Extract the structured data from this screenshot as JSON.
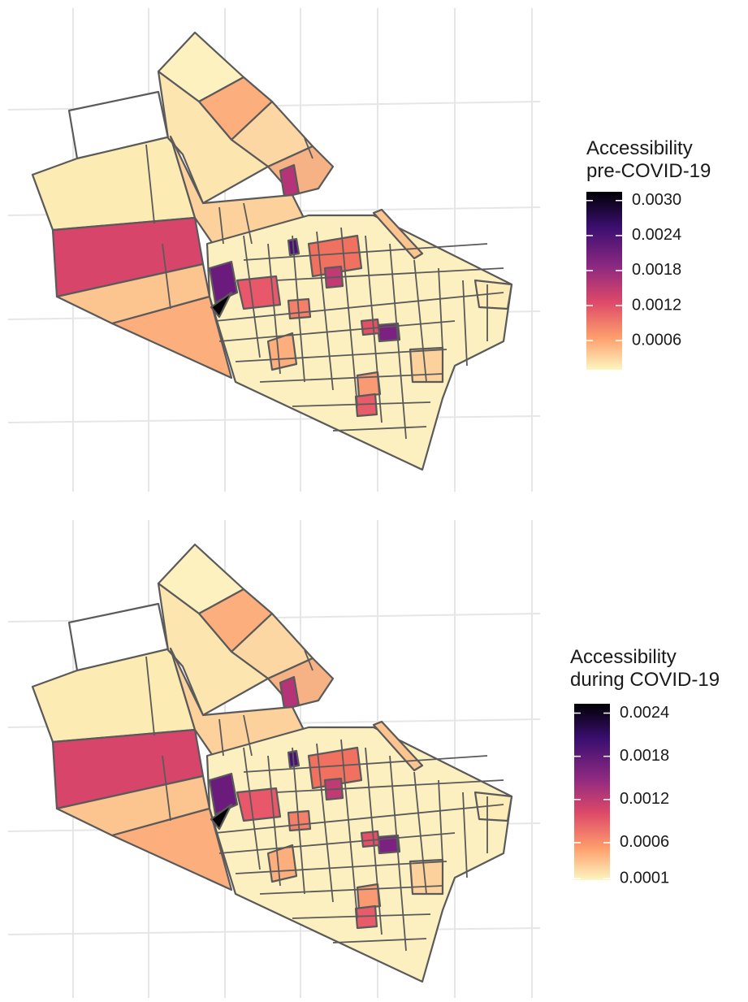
{
  "legends": [
    {
      "title": [
        "Accessibility",
        "pre-COVID-19"
      ],
      "lim": [
        0.0001,
        0.00315
      ],
      "ticks": [
        {
          "value": 0.003,
          "label": "0.0030"
        },
        {
          "value": 0.0024,
          "label": "0.0024"
        },
        {
          "value": 0.0018,
          "label": "0.0018"
        },
        {
          "value": 0.0012,
          "label": "0.0012"
        },
        {
          "value": 0.0006,
          "label": "0.0006"
        }
      ]
    },
    {
      "title": [
        "Accessibility",
        "during COVID-19"
      ],
      "lim": [
        8e-05,
        0.00253
      ],
      "ticks": [
        {
          "value": 0.0024,
          "label": "0.0024"
        },
        {
          "value": 0.0018,
          "label": "0.0018"
        },
        {
          "value": 0.0012,
          "label": "0.0012"
        },
        {
          "value": 0.0006,
          "label": "0.0006"
        },
        {
          "value": 0.0001,
          "label": "0.0001"
        }
      ]
    }
  ]
}
